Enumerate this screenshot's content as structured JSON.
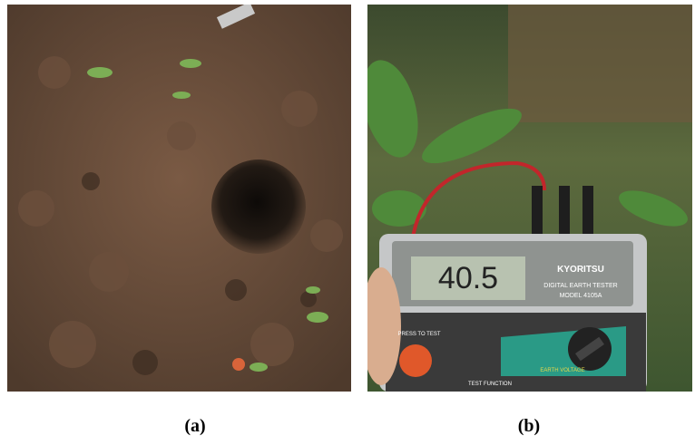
{
  "figure": {
    "panels": [
      {
        "caption": "(a)"
      },
      {
        "caption": "(b)",
        "device": {
          "brand": "KYORITSU",
          "name": "DIGITAL EARTH TESTER",
          "model": "MODEL 4105A",
          "reading": "40.5",
          "button": "PRESS TO TEST",
          "function": "TEST FUNCTION",
          "mode": "EARTH VOLTAGE"
        }
      }
    ]
  }
}
